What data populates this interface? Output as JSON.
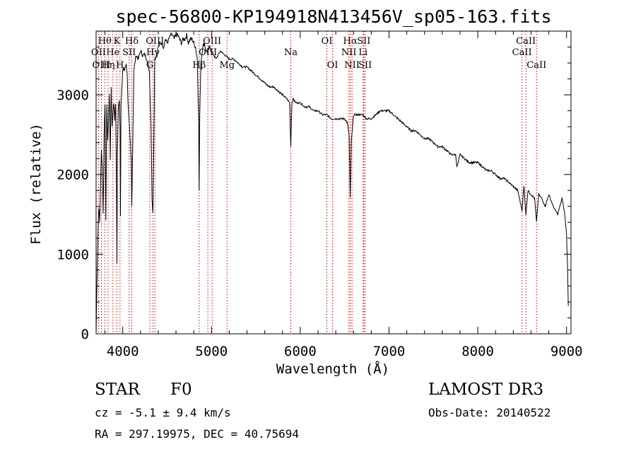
{
  "chart_data": {
    "type": "line",
    "title": "spec-56800-KP194918N413456V_sp05-163.fits",
    "xlabel": "Wavelength (Å)",
    "ylabel": "Flux (relative)",
    "xlim": [
      3700,
      9050
    ],
    "ylim": [
      0,
      3800
    ],
    "xticks": [
      4000,
      5000,
      6000,
      7000,
      8000,
      9000
    ],
    "yticks": [
      0,
      1000,
      2000,
      3000
    ],
    "grid": false,
    "series": [
      {
        "name": "flux",
        "x": [
          3700,
          3710,
          3720,
          3730,
          3740,
          3750,
          3760,
          3770,
          3780,
          3790,
          3800,
          3810,
          3820,
          3830,
          3840,
          3850,
          3860,
          3870,
          3880,
          3890,
          3900,
          3910,
          3920,
          3930,
          3935,
          3940,
          3950,
          3960,
          3970,
          3975,
          3980,
          3990,
          4000,
          4010,
          4020,
          4030,
          4040,
          4050,
          4060,
          4080,
          4095,
          4102,
          4110,
          4125,
          4150,
          4175,
          4200,
          4225,
          4250,
          4275,
          4300,
          4320,
          4330,
          4340,
          4350,
          4360,
          4380,
          4400,
          4420,
          4440,
          4460,
          4480,
          4500,
          4520,
          4540,
          4560,
          4580,
          4600,
          4620,
          4640,
          4660,
          4680,
          4700,
          4720,
          4740,
          4760,
          4780,
          4800,
          4820,
          4840,
          4855,
          4861,
          4867,
          4880,
          4900,
          4920,
          4940,
          4960,
          4980,
          5000,
          5050,
          5100,
          5150,
          5200,
          5250,
          5300,
          5350,
          5400,
          5450,
          5500,
          5550,
          5600,
          5650,
          5700,
          5750,
          5800,
          5850,
          5880,
          5893,
          5906,
          5920,
          5950,
          6000,
          6050,
          6100,
          6150,
          6200,
          6250,
          6300,
          6350,
          6400,
          6450,
          6500,
          6530,
          6550,
          6563,
          6575,
          6600,
          6650,
          6700,
          6750,
          6800,
          6850,
          6900,
          6950,
          7000,
          7050,
          7100,
          7150,
          7200,
          7250,
          7300,
          7350,
          7400,
          7450,
          7500,
          7550,
          7600,
          7650,
          7700,
          7750,
          7765,
          7780,
          7800,
          7850,
          7900,
          7950,
          8000,
          8050,
          8100,
          8150,
          8200,
          8250,
          8300,
          8350,
          8400,
          8450,
          8498,
          8520,
          8542,
          8565,
          8600,
          8640,
          8662,
          8685,
          8720,
          8760,
          8800,
          8850,
          8900,
          8950,
          8980,
          9000,
          9010,
          9020
        ],
        "values": [
          0,
          700,
          1200,
          1600,
          1400,
          1900,
          2300,
          2100,
          1500,
          2500,
          2900,
          1400,
          2900,
          2400,
          2700,
          3000,
          2200,
          3100,
          2600,
          2800,
          2900,
          2700,
          2900,
          1700,
          900,
          2300,
          2800,
          2950,
          2600,
          1500,
          2900,
          3050,
          3300,
          3350,
          3300,
          3350,
          3400,
          3250,
          2900,
          2500,
          2150,
          1600,
          2200,
          3300,
          3500,
          3450,
          3550,
          3500,
          3500,
          3450,
          3300,
          2600,
          1700,
          1500,
          2400,
          3450,
          3500,
          3600,
          3650,
          3650,
          3600,
          3700,
          3650,
          3700,
          3750,
          3750,
          3700,
          3750,
          3750,
          3700,
          3650,
          3700,
          3700,
          3750,
          3650,
          3700,
          3700,
          3650,
          3600,
          3450,
          2700,
          1800,
          2700,
          3400,
          3600,
          3650,
          3550,
          3550,
          3600,
          3550,
          3450,
          3550,
          3500,
          3450,
          3450,
          3400,
          3350,
          3350,
          3300,
          3250,
          3200,
          3150,
          3100,
          3100,
          3050,
          3000,
          2950,
          2900,
          2350,
          2900,
          2950,
          2900,
          2900,
          2850,
          2850,
          2800,
          2800,
          2750,
          2750,
          2700,
          2700,
          2700,
          2700,
          2650,
          2500,
          1700,
          2400,
          2750,
          2750,
          2750,
          2700,
          2700,
          2750,
          2800,
          2800,
          2800,
          2750,
          2700,
          2650,
          2600,
          2550,
          2550,
          2500,
          2450,
          2450,
          2400,
          2350,
          2350,
          2300,
          2250,
          2250,
          2100,
          2150,
          2250,
          2200,
          2150,
          2150,
          2150,
          2100,
          2050,
          2050,
          2000,
          1950,
          1950,
          1900,
          1850,
          1800,
          1550,
          1850,
          1500,
          1800,
          1750,
          1700,
          1400,
          1750,
          1700,
          1600,
          1750,
          1600,
          1500,
          1700,
          1500,
          1250,
          900,
          350
        ]
      }
    ],
    "lines": [
      {
        "label": "Hθ",
        "x": 3798,
        "pos": "top",
        "row": 1
      },
      {
        "label": "OII",
        "x": 3727,
        "pos": "top",
        "row": 2
      },
      {
        "label": "OIII",
        "x": 3760,
        "pos": "top",
        "row": 3
      },
      {
        "label": "He",
        "x": 3889,
        "pos": "top",
        "row": 2
      },
      {
        "label": "Hη",
        "x": 3835,
        "pos": "top",
        "row": 3
      },
      {
        "label": "K",
        "x": 3934,
        "pos": "top",
        "row": 1
      },
      {
        "label": "H",
        "x": 3969,
        "pos": "top",
        "row": 3
      },
      {
        "label": "Hδ",
        "x": 4102,
        "pos": "top",
        "row": 1
      },
      {
        "label": "SII",
        "x": 4072,
        "pos": "top",
        "row": 2
      },
      {
        "label": "OIII",
        "x": 4363,
        "pos": "top",
        "row": 1
      },
      {
        "label": "Hγ",
        "x": 4341,
        "pos": "top",
        "row": 2
      },
      {
        "label": "G",
        "x": 4305,
        "pos": "top",
        "row": 3
      },
      {
        "label": "Hβ",
        "x": 4861,
        "pos": "top",
        "row": 3
      },
      {
        "label": "OIII",
        "x": 5007,
        "pos": "top",
        "row": 1
      },
      {
        "label": "OIII",
        "x": 4959,
        "pos": "top",
        "row": 2
      },
      {
        "label": "Mg",
        "x": 5175,
        "pos": "top",
        "row": 3
      },
      {
        "label": "Na",
        "x": 5893,
        "pos": "top",
        "row": 2
      },
      {
        "label": "OI",
        "x": 6300,
        "pos": "top",
        "row": 1
      },
      {
        "label": "OI",
        "x": 6364,
        "pos": "top",
        "row": 3
      },
      {
        "label": "Hα",
        "x": 6563,
        "pos": "top",
        "row": 1
      },
      {
        "label": "NII",
        "x": 6548,
        "pos": "top",
        "row": 2
      },
      {
        "label": "NII",
        "x": 6583,
        "pos": "top",
        "row": 3
      },
      {
        "label": "SII",
        "x": 6716,
        "pos": "top",
        "row": 1
      },
      {
        "label": "Li",
        "x": 6708,
        "pos": "top",
        "row": 2
      },
      {
        "label": "SII",
        "x": 6731,
        "pos": "top",
        "row": 3
      },
      {
        "label": "CaII",
        "x": 8542,
        "pos": "top",
        "row": 1
      },
      {
        "label": "CaII",
        "x": 8498,
        "pos": "top",
        "row": 2
      },
      {
        "label": "CaII",
        "x": 8662,
        "pos": "top",
        "row": 3
      }
    ],
    "colors": {
      "spectrum": "#000000",
      "line_marker": "#cc0000"
    }
  },
  "info": {
    "object_class": "STAR",
    "subclass": "F0",
    "survey": "LAMOST DR3",
    "redshift": "cz = -5.1 ± 9.4 km/s",
    "obs_date": "Obs-Date: 20140522",
    "coords": "RA = 297.19975, DEC =  40.75694"
  }
}
